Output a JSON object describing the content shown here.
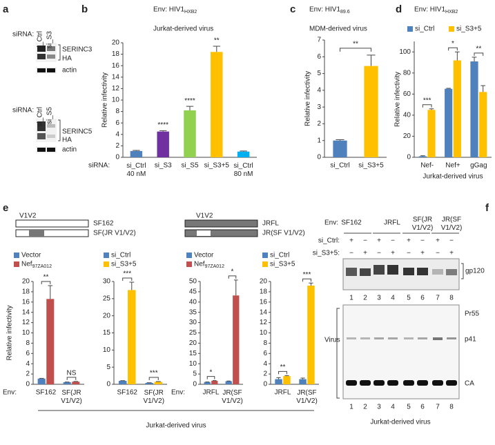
{
  "panel_labels": [
    "a",
    "b",
    "c",
    "d",
    "e",
    "f"
  ],
  "panel_a": {
    "blots": [
      {
        "prefix": "siRNA:",
        "lanes": [
          "si_Ctrl",
          "si_S3"
        ],
        "protein": "SERINC3",
        "tag": "HA",
        "loading": "actin"
      },
      {
        "prefix": "siRNA:",
        "lanes": [
          "si_Ctrl",
          "si_S5"
        ],
        "protein": "SERINC5",
        "tag": "HA",
        "loading": "actin"
      }
    ]
  },
  "panel_e": {
    "region_left": "V1V2",
    "constructs_left": [
      "SF162",
      "SF(JR V1/V2)"
    ],
    "region_right": "V1V2",
    "constructs_right": [
      "JRFL",
      "JR(SF V1/V2)"
    ],
    "footer": "Jurkat-derived virus"
  },
  "panel_f": {
    "env_label": "Env:",
    "envs": [
      "SF162",
      "JRFL",
      "SF(JR\nV1/V2)",
      "JR(SF\nV1/V2)"
    ],
    "rows": [
      {
        "label": "si_Ctrl:",
        "signs": [
          "+",
          "−",
          "+",
          "−",
          "+",
          "−",
          "+",
          "−"
        ]
      },
      {
        "label": "si_S3+5:",
        "signs": [
          "−",
          "+",
          "−",
          "+",
          "−",
          "+",
          "−",
          "+"
        ]
      }
    ],
    "lanes": [
      "1",
      "2",
      "3",
      "4",
      "5",
      "6",
      "7",
      "8"
    ],
    "gp_label": "gp120",
    "virus_label": "Virus",
    "bands": [
      "Pr55",
      "p41",
      "CA"
    ],
    "footer": "Jurkat-derived virus"
  },
  "chart_data": [
    {
      "type": "bar",
      "title": "Env: HIV1",
      "title_sub": "HXB2",
      "subtitle": "Jurkat-derived virus",
      "ylabel": "Relative infectivity",
      "x_prefix": "siRNA:",
      "categories": [
        "si_Ctrl\n40 nM",
        "si_S3",
        "si_S5",
        "si_S3+5",
        "si_Ctrl\n80 nM"
      ],
      "values": [
        1.1,
        4.5,
        8.2,
        18.4,
        1.0
      ],
      "errors": [
        0.1,
        0.15,
        0.7,
        1.0,
        0.1
      ],
      "colors": [
        "#4f81bd",
        "#7030a0",
        "#92d050",
        "#ffc000",
        "#00b0f0"
      ],
      "significance": [
        null,
        "****",
        "****",
        "**",
        null
      ],
      "ylim": [
        0,
        20
      ],
      "yticks": [
        0,
        2,
        4,
        6,
        8,
        10,
        12,
        14,
        16,
        18,
        20
      ]
    },
    {
      "type": "bar",
      "title": "Env: HIV1",
      "title_sub": "89.6",
      "subtitle": "MDM-derived virus",
      "ylabel": "Relative infectivity",
      "categories": [
        "si_Ctrl",
        "si_S3+5"
      ],
      "values": [
        1.0,
        5.45
      ],
      "errors": [
        0.05,
        0.65
      ],
      "colors": [
        "#4f81bd",
        "#ffc000"
      ],
      "significance": "**",
      "ylim": [
        0,
        7
      ],
      "yticks": [
        0,
        1,
        2,
        3,
        4,
        5,
        6,
        7
      ]
    },
    {
      "type": "bar",
      "title": "Env: HIV1",
      "title_sub": "HXB2",
      "ylabel": "Relative infectivity",
      "xlabel": "Jurkat-derived virus",
      "categories": [
        "Nef-",
        "Nef+",
        "gGag"
      ],
      "series": [
        {
          "name": "si_Ctrl",
          "color": "#4f81bd",
          "values": [
            1,
            65,
            91
          ],
          "errors": [
            0.5,
            0.5,
            4
          ]
        },
        {
          "name": "si_S3+5",
          "color": "#ffc000",
          "values": [
            45,
            92,
            62
          ],
          "errors": [
            1,
            8,
            6
          ]
        }
      ],
      "significance": [
        "***",
        "*",
        "**"
      ],
      "ylim": [
        0,
        110
      ],
      "yticks": [
        0,
        20,
        40,
        60,
        80,
        100
      ]
    },
    {
      "type": "bar",
      "ylabel": "Relative infectivity",
      "x_prefix": "Env:",
      "categories": [
        "SF162",
        "SF(JR\nV1/V2)"
      ],
      "series": [
        {
          "name": "Vector",
          "color": "#4f81bd",
          "values": [
            1.1,
            0.4
          ],
          "errors": [
            0.05,
            0.03
          ]
        },
        {
          "name": "Nef",
          "name_sub": "97ZA012",
          "color": "#c0504d",
          "values": [
            16.6,
            0.5
          ],
          "errors": [
            2.6,
            0.05
          ]
        }
      ],
      "significance": [
        "**",
        "NS"
      ],
      "ylim": [
        0,
        20
      ],
      "yticks": [
        0,
        2,
        4,
        6,
        8,
        10,
        12,
        14,
        16,
        18,
        20
      ]
    },
    {
      "type": "bar",
      "categories": [
        "SF162",
        "SF(JR\nV1/V2)"
      ],
      "series": [
        {
          "name": "si_Ctrl",
          "color": "#4f81bd",
          "values": [
            1.0,
            0.4
          ],
          "errors": [
            0.05,
            0.05
          ]
        },
        {
          "name": "si_S3+5",
          "color": "#ffc000",
          "values": [
            27.5,
            0.7
          ],
          "errors": [
            2.3,
            0.1
          ]
        }
      ],
      "significance": [
        "***",
        "***"
      ],
      "ylim": [
        0,
        30
      ],
      "yticks": [
        0,
        5,
        10,
        15,
        20,
        25,
        30
      ]
    },
    {
      "type": "bar",
      "x_prefix": "Env:",
      "categories": [
        "JRFL",
        "JR(SF\nV1/V2)"
      ],
      "series": [
        {
          "name": "Vector",
          "color": "#4f81bd",
          "values": [
            1.1,
            1.5
          ],
          "errors": [
            0.05,
            0.1
          ]
        },
        {
          "name": "Nef",
          "name_sub": "97ZA012",
          "color": "#c0504d",
          "values": [
            1.7,
            43.2
          ],
          "errors": [
            0.1,
            7.5
          ]
        }
      ],
      "significance": [
        "*",
        "*"
      ],
      "ylim": [
        0,
        50
      ],
      "yticks": [
        0,
        5,
        10,
        15,
        20,
        25,
        30,
        35,
        40,
        45,
        50
      ]
    },
    {
      "type": "bar",
      "categories": [
        "JRFL",
        "JR(SF\nV1/V2)"
      ],
      "series": [
        {
          "name": "si_Ctrl",
          "color": "#4f81bd",
          "values": [
            1.0,
            1.0
          ],
          "errors": [
            0.3,
            0.2
          ]
        },
        {
          "name": "si_S3+5",
          "color": "#ffc000",
          "values": [
            1.6,
            19.2
          ],
          "errors": [
            0.1,
            0.5
          ]
        }
      ],
      "significance": [
        "**",
        "***"
      ],
      "ylim": [
        0,
        20
      ],
      "yticks": [
        0,
        2,
        4,
        6,
        8,
        10,
        12,
        14,
        16,
        18,
        20
      ]
    }
  ]
}
